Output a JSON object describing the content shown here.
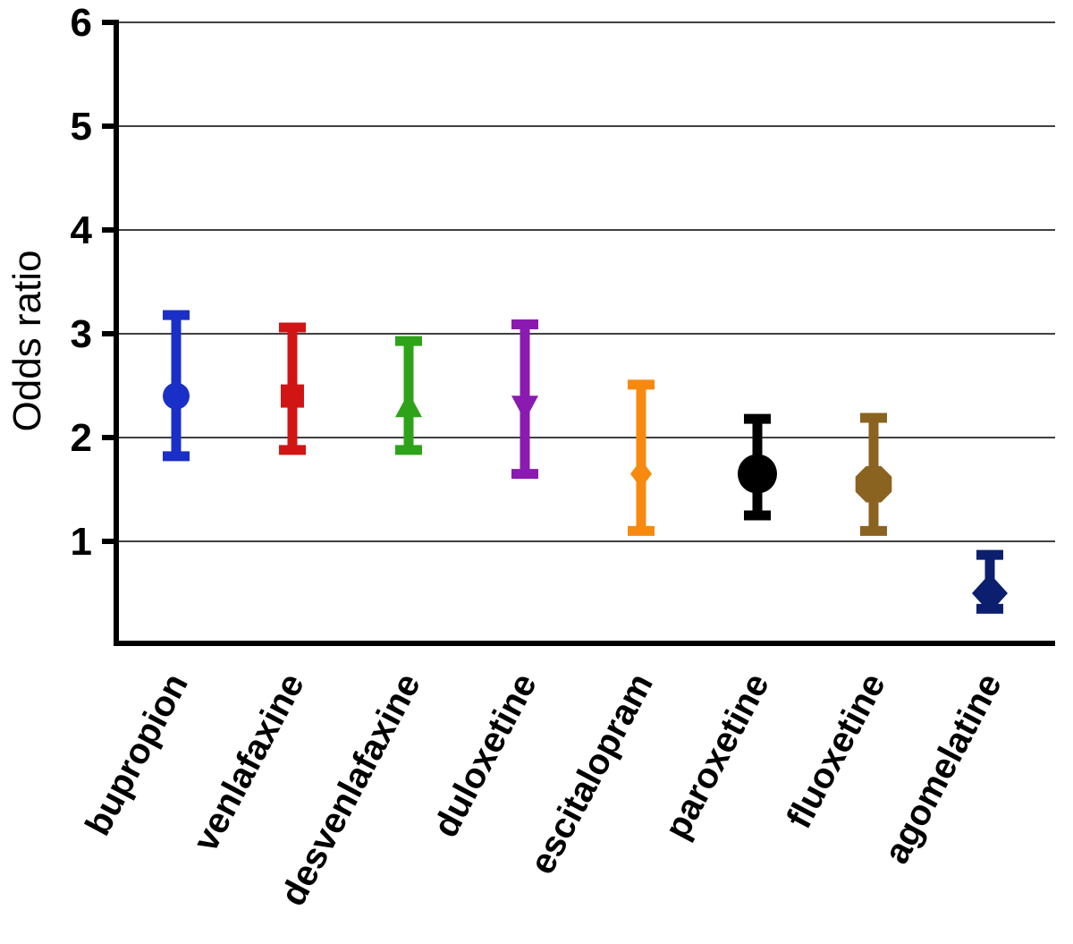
{
  "chart_data": {
    "type": "scatter",
    "ylabel": "Odds ratio",
    "xlabel": "",
    "ylim": [
      0,
      6
    ],
    "yticks": [
      1,
      2,
      3,
      4,
      5,
      6
    ],
    "grid": true,
    "categories": [
      "bupropion",
      "venlafaxine",
      "desvenlafaxine",
      "duloxetine",
      "escitalopram",
      "paroxetine",
      "fluoxetine",
      "agomelatine"
    ],
    "series": [
      {
        "category": "bupropion",
        "estimate": 2.4,
        "lower": 1.82,
        "upper": 3.18,
        "color": "#1a2fc8",
        "marker": "circle"
      },
      {
        "category": "venlafaxine",
        "estimate": 2.4,
        "lower": 1.88,
        "upper": 3.06,
        "color": "#d11515",
        "marker": "square"
      },
      {
        "category": "desvenlafaxine",
        "estimate": 2.3,
        "lower": 1.88,
        "upper": 2.93,
        "color": "#2ea31a",
        "marker": "triangle-up"
      },
      {
        "category": "duloxetine",
        "estimate": 2.3,
        "lower": 1.65,
        "upper": 3.09,
        "color": "#8a1ab0",
        "marker": "triangle-down"
      },
      {
        "category": "escitalopram",
        "estimate": 1.65,
        "lower": 1.1,
        "upper": 2.51,
        "color": "#f7890f",
        "marker": "diamond"
      },
      {
        "category": "paroxetine",
        "estimate": 1.65,
        "lower": 1.25,
        "upper": 2.18,
        "color": "#000000",
        "marker": "circle"
      },
      {
        "category": "fluoxetine",
        "estimate": 1.55,
        "lower": 1.1,
        "upper": 2.19,
        "color": "#8b6320",
        "marker": "octagon"
      },
      {
        "category": "agomelatine",
        "estimate": 0.5,
        "lower": 0.35,
        "upper": 0.87,
        "color": "#0b1f6e",
        "marker": "diamond"
      }
    ]
  }
}
